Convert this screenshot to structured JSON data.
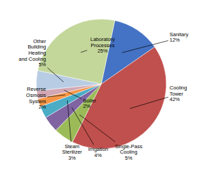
{
  "chart_data": {
    "type": "pie",
    "categories": [
      "Sanitary",
      "Cooling\nTower",
      "Single-Pass\nCooling",
      "Irrigation",
      "Steam\nSterilizer",
      "Reverse\nOsmosis\nSystem",
      "Boiler",
      "Other\nBuilding\nHeating\nand Cooling",
      "Laboratory\nProcesses"
    ],
    "values": [
      12,
      42,
      5,
      4,
      3,
      2,
      2,
      5,
      25
    ],
    "value_labels": [
      "12%",
      "42%",
      "5%",
      "4%",
      "3%",
      "2%",
      "2%",
      "5%",
      "25%"
    ],
    "colors": [
      "#4472c4",
      "#c0504d",
      "#9bbb59",
      "#8064a2",
      "#4bacc6",
      "#f79646",
      "#d3a8b4",
      "#b8cce4",
      "#c4d79b"
    ],
    "data_labels": true
  }
}
